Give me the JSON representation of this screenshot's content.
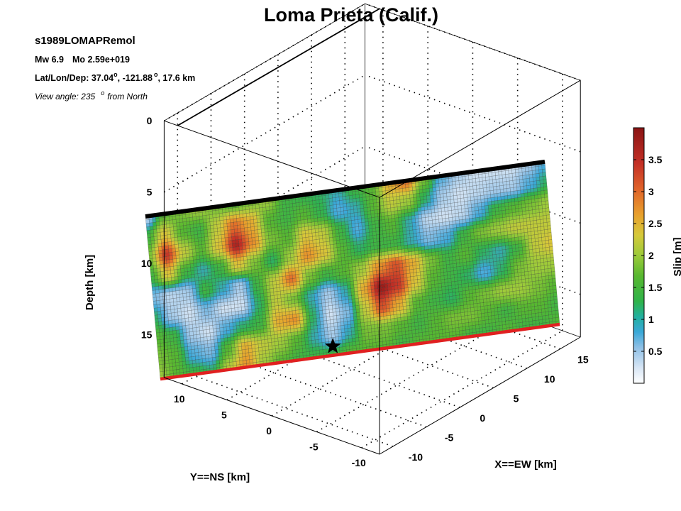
{
  "chart_data": {
    "type": "heatmap",
    "title": "Loma Prieta (Calif.)",
    "info": {
      "model": "s1989LOMAPRemol",
      "mw": "Mw 6.9",
      "mo": "Mo 2.59e+019",
      "location_label": "Lat/Lon/Dep: 37.04",
      "lon": ", -121.88",
      "dep": ", 17.6 km",
      "deg": "o",
      "view_prefix": "View angle: 235",
      "view_suffix": "from North"
    },
    "axes": {
      "xlabel": "X==EW [km]",
      "ylabel": "Y==NS [km]",
      "zlabel": "Depth [km]",
      "xlim": [
        -12,
        18
      ],
      "ylim": [
        -12,
        12
      ],
      "zlim": [
        0,
        18
      ],
      "x_ticks": [
        "-10",
        "-5",
        "0",
        "5",
        "10",
        "15"
      ],
      "y_ticks": [
        "10",
        "5",
        "0",
        "-5",
        "-10"
      ],
      "z_ticks": [
        "0",
        "5",
        "10",
        "15"
      ],
      "grid": true
    },
    "colorbar": {
      "label": "Slip [m]",
      "range": [
        0,
        4
      ],
      "ticks": [
        "0.5",
        "1",
        "1.5",
        "2",
        "2.5",
        "3",
        "3.5"
      ],
      "colormap": [
        "#ffffff",
        "#d8e6f5",
        "#8fb8e0",
        "#3fa0d0",
        "#2fb35a",
        "#52b830",
        "#9ccb3a",
        "#d7c63a",
        "#e89a2c",
        "#d9552a",
        "#b62b25",
        "#8a1a1a"
      ]
    },
    "fault": {
      "strike_km": 36,
      "dip_depth_km": 18,
      "hypocenter_depth_km": 17.6,
      "top_edge_color": "#000000",
      "bottom_edge_color": "#e02020"
    },
    "slip_grid": [
      [
        0.4,
        1.8,
        2.0,
        2.2,
        2.0,
        1.8,
        2.0,
        2.2,
        1.6,
        1.5,
        1.4,
        1.2,
        1.6,
        1.8,
        2.8,
        3.2,
        2.0,
        1.0,
        0.6,
        0.4,
        0.4,
        0.4,
        0.6,
        1.0
      ],
      [
        1.6,
        2.6,
        1.8,
        1.6,
        2.4,
        3.2,
        2.8,
        1.8,
        1.6,
        1.8,
        1.5,
        1.0,
        1.2,
        1.8,
        2.4,
        2.2,
        1.4,
        0.6,
        0.4,
        0.5,
        0.6,
        0.6,
        1.0,
        1.4
      ],
      [
        2.0,
        3.6,
        2.4,
        1.8,
        2.6,
        3.8,
        3.0,
        2.0,
        1.8,
        2.6,
        2.4,
        1.6,
        1.0,
        1.6,
        1.8,
        1.2,
        0.5,
        0.4,
        0.5,
        1.0,
        1.6,
        1.8,
        2.0,
        2.2
      ],
      [
        1.6,
        2.6,
        1.6,
        1.2,
        1.6,
        2.6,
        2.0,
        1.4,
        2.2,
        3.0,
        2.6,
        1.8,
        1.4,
        1.6,
        1.6,
        1.2,
        0.8,
        1.0,
        1.6,
        2.0,
        2.2,
        2.4,
        2.4,
        2.4
      ],
      [
        0.8,
        0.5,
        0.6,
        1.6,
        1.2,
        0.6,
        1.6,
        2.4,
        3.2,
        2.0,
        1.6,
        1.8,
        2.2,
        3.0,
        3.4,
        2.8,
        2.0,
        1.6,
        1.8,
        1.4,
        1.2,
        1.6,
        2.4,
        2.6
      ],
      [
        1.4,
        0.6,
        0.4,
        0.8,
        0.4,
        0.4,
        1.4,
        2.4,
        2.0,
        1.2,
        0.6,
        1.2,
        2.8,
        3.9,
        3.6,
        2.6,
        1.8,
        1.6,
        1.4,
        1.0,
        1.4,
        2.0,
        2.2,
        2.2
      ],
      [
        1.8,
        1.6,
        0.6,
        0.4,
        1.0,
        1.4,
        1.6,
        2.8,
        3.0,
        1.4,
        0.4,
        0.8,
        2.4,
        3.4,
        2.8,
        1.8,
        1.6,
        1.4,
        1.8,
        2.0,
        2.2,
        2.2,
        2.0,
        1.8
      ],
      [
        2.0,
        1.8,
        1.0,
        0.8,
        1.8,
        2.8,
        2.4,
        2.2,
        1.8,
        1.2,
        0.6,
        1.2,
        2.0,
        2.0,
        1.8,
        1.6,
        1.8,
        2.0,
        2.0,
        1.8,
        1.6,
        1.8,
        1.8,
        1.6
      ],
      [
        2.2,
        1.8,
        1.6,
        1.4,
        2.4,
        3.0,
        2.2,
        1.8,
        1.6,
        1.6,
        1.6,
        1.8,
        1.8,
        1.8,
        1.6,
        1.8,
        1.8,
        1.8,
        1.6,
        1.6,
        1.8,
        1.6,
        1.6,
        1.8
      ]
    ]
  }
}
